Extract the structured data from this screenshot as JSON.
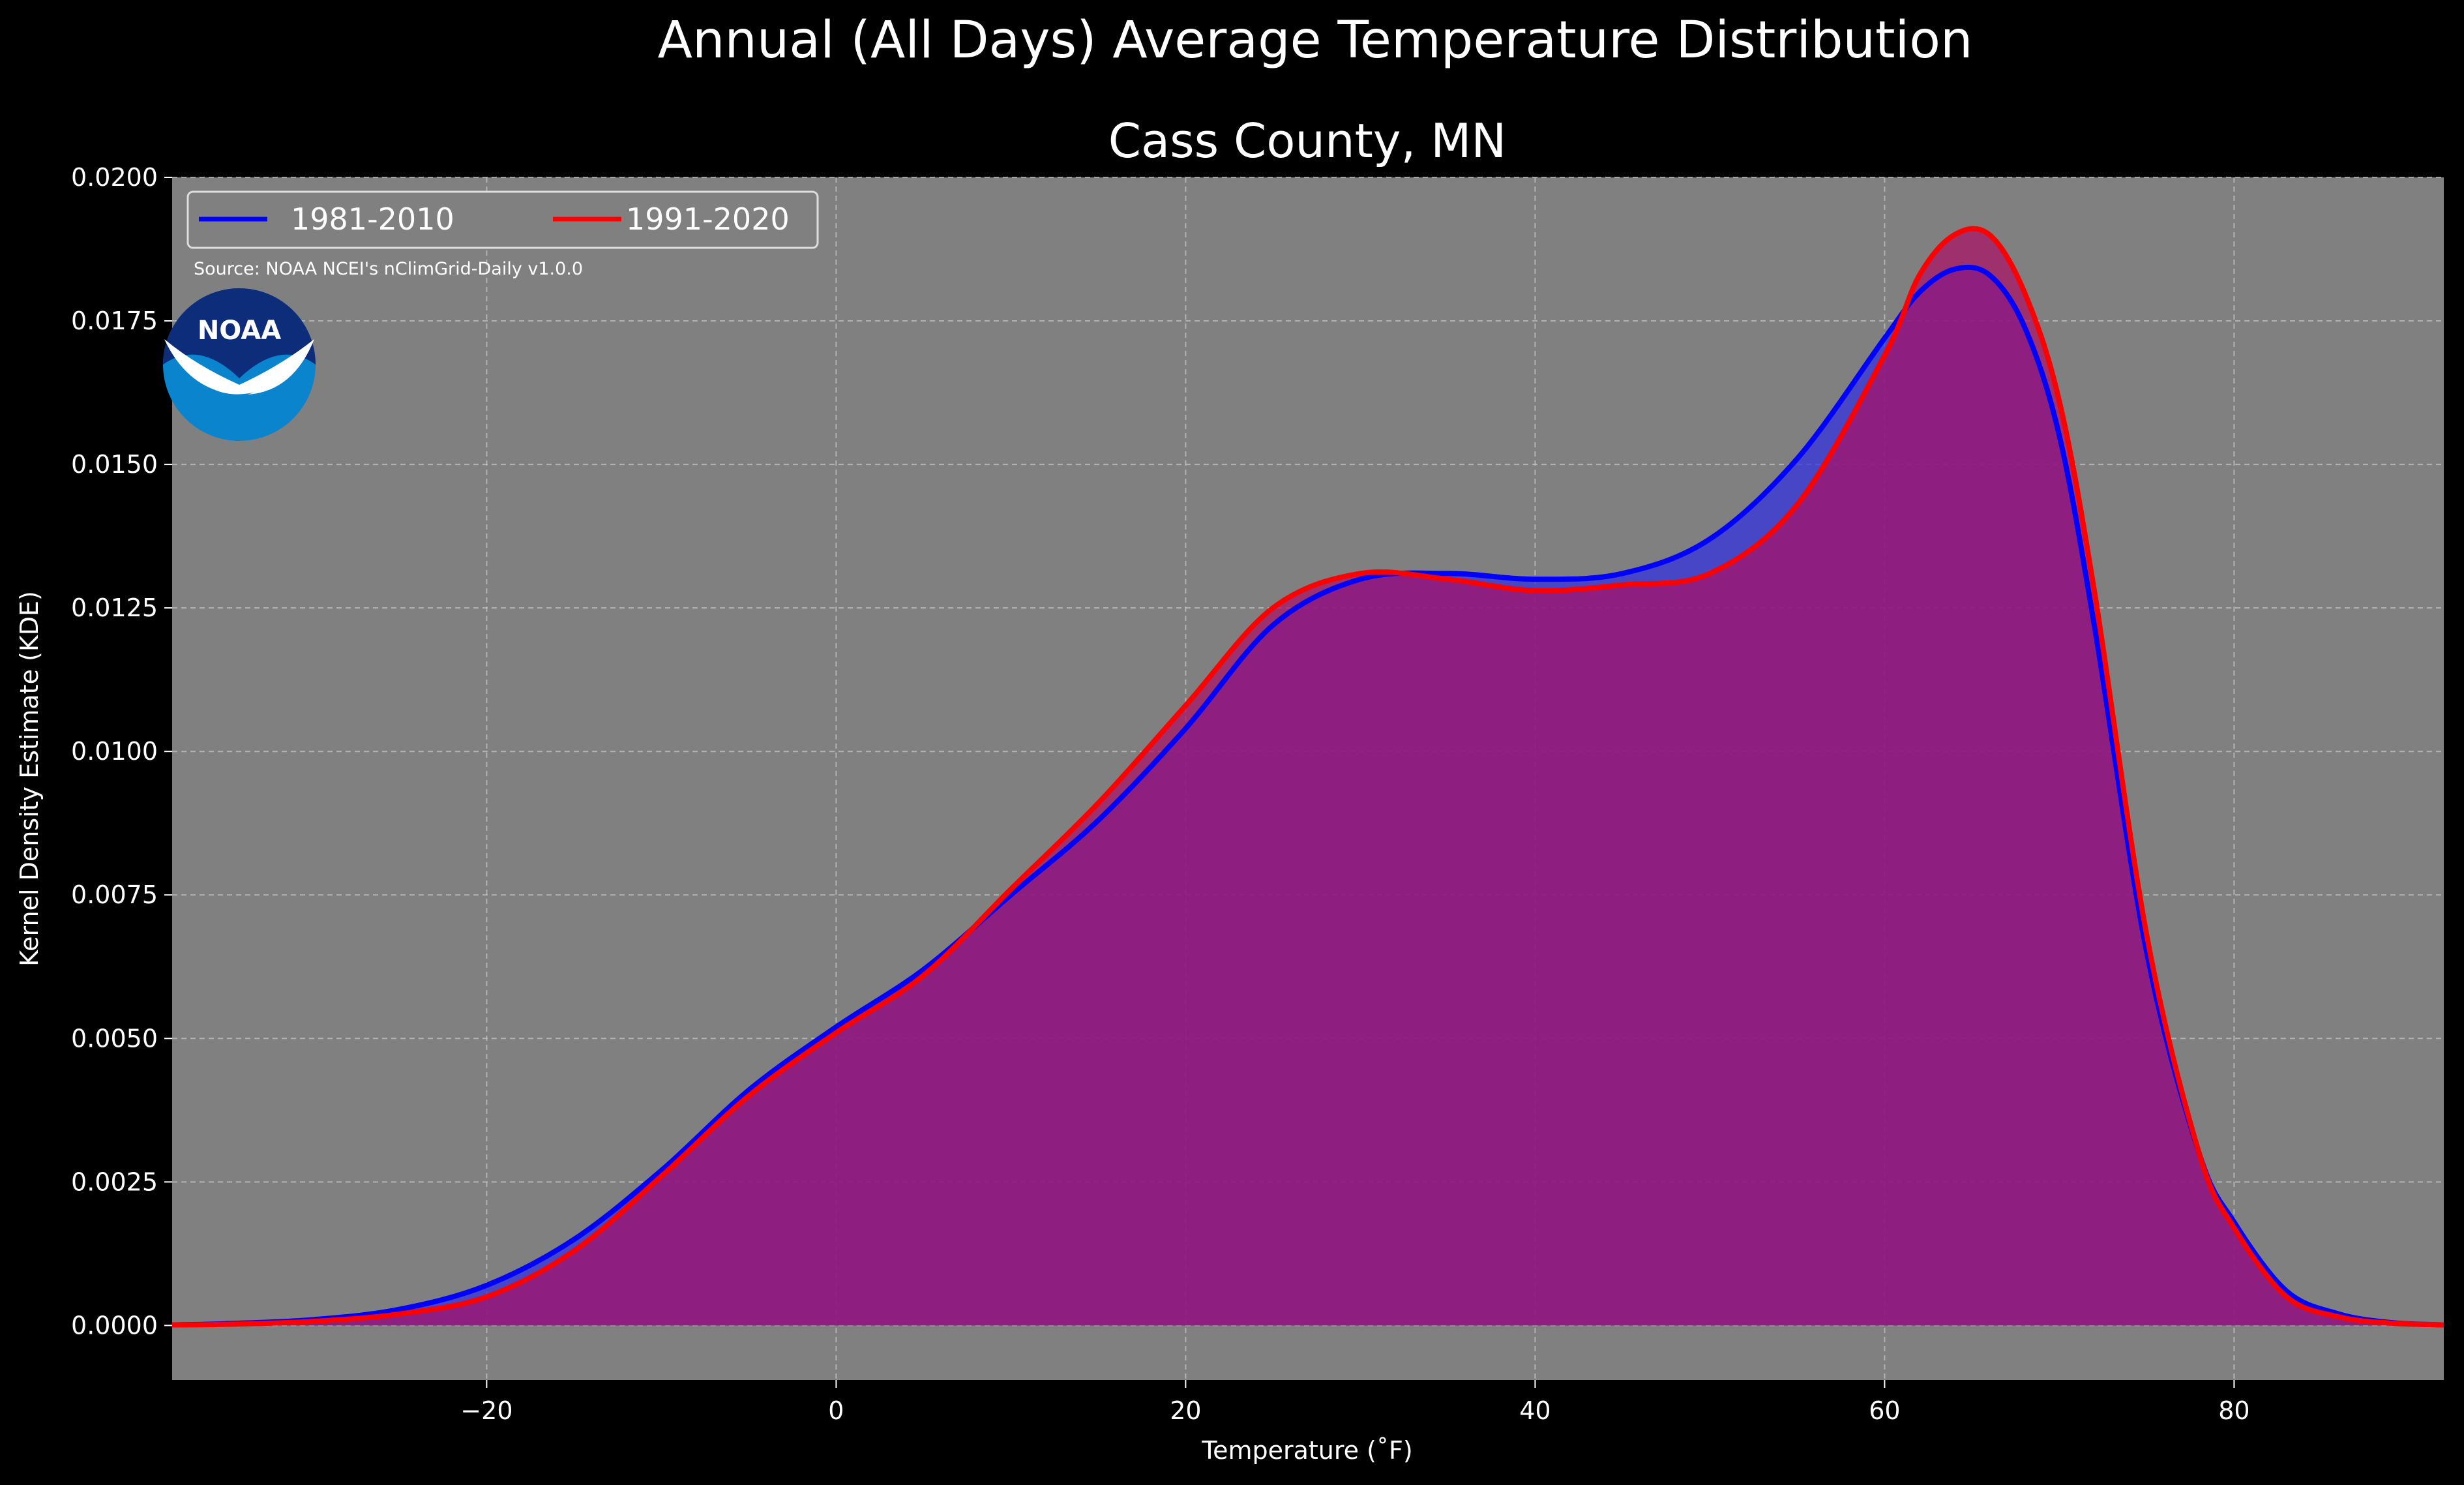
{
  "chart_data": {
    "type": "area",
    "title": "Annual (All Days) Average Temperature Distribution",
    "subtitle": "Cass County, MN",
    "xlabel": "Temperature ($^\\circ$F)",
    "xlabel_display": "Temperature (˚F)",
    "ylabel": "Kernel Density Estimate (KDE)",
    "xlim": [
      -38,
      92
    ],
    "ylim": [
      -0.00095,
      0.02
    ],
    "xticks": [
      -20,
      0,
      20,
      40,
      60,
      80
    ],
    "xtick_labels": [
      "−20",
      "0",
      "20",
      "40",
      "60",
      "80"
    ],
    "yticks": [
      0,
      0.0025,
      0.005,
      0.0075,
      0.01,
      0.0125,
      0.015,
      0.0175,
      0.02
    ],
    "ytick_labels": [
      "0.0000",
      "0.0025",
      "0.0050",
      "0.0075",
      "0.0100",
      "0.0125",
      "0.0150",
      "0.0175",
      "0.0200"
    ],
    "grid": true,
    "legend_placement": "top-left",
    "annotation": "Source: NOAA NCEI's nClimGrid-Daily v1.0.0",
    "logo_text": "NOAA",
    "series": [
      {
        "name": "1981-2010",
        "color": "#0000ff",
        "fill": "#3333dd",
        "x": [
          -38,
          -35,
          -30,
          -25,
          -20,
          -15,
          -10,
          -5,
          0,
          5,
          10,
          15,
          20,
          25,
          30,
          35,
          40,
          45,
          50,
          55,
          60,
          62,
          64,
          66,
          68,
          70,
          72,
          75,
          78,
          80,
          83,
          86,
          89,
          92
        ],
        "values": [
          1e-05,
          3e-05,
          0.0001,
          0.00028,
          0.0007,
          0.0015,
          0.0027,
          0.0041,
          0.0052,
          0.0062,
          0.0075,
          0.0088,
          0.0104,
          0.0122,
          0.013,
          0.0131,
          0.013,
          0.0131,
          0.0137,
          0.0151,
          0.0172,
          0.018,
          0.0184,
          0.0183,
          0.0174,
          0.0155,
          0.0122,
          0.0065,
          0.003,
          0.0018,
          0.0006,
          0.0002,
          5e-05,
          1e-05
        ]
      },
      {
        "name": "1991-2020",
        "color": "#ff0000",
        "fill": "#aa1166",
        "x": [
          -38,
          -35,
          -30,
          -25,
          -20,
          -15,
          -10,
          -5,
          0,
          5,
          10,
          15,
          20,
          25,
          30,
          35,
          40,
          45,
          50,
          55,
          60,
          62,
          64,
          66,
          68,
          70,
          72,
          75,
          78,
          80,
          83,
          86,
          89,
          92
        ],
        "values": [
          1e-05,
          2e-05,
          7e-05,
          0.0002,
          0.0005,
          0.0013,
          0.0026,
          0.004,
          0.0051,
          0.0061,
          0.0076,
          0.0091,
          0.0108,
          0.0125,
          0.0131,
          0.013,
          0.0128,
          0.0129,
          0.0131,
          0.0143,
          0.0169,
          0.0183,
          0.019,
          0.019,
          0.018,
          0.0161,
          0.0128,
          0.0068,
          0.003,
          0.0017,
          0.0005,
          0.00015,
          4e-05,
          1e-05
        ]
      }
    ]
  }
}
